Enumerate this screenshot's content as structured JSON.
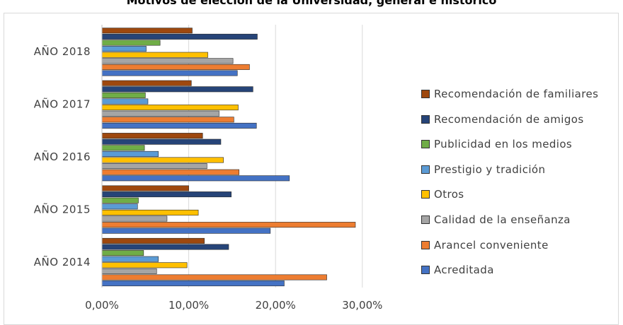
{
  "chart_data": {
    "type": "bar",
    "orientation": "horizontal",
    "title": "Motivos de elección de la Universidad, general e histórico",
    "categories": [
      "AÑO 2014",
      "AÑO 2015",
      "AÑO 2016",
      "AÑO 2017",
      "AÑO 2018"
    ],
    "x_tick_labels": [
      "0,00%",
      "10,00%",
      "20,00%",
      "30,00%"
    ],
    "xlim": [
      0,
      30
    ],
    "grid": true,
    "legend_position": "right",
    "series": [
      {
        "name": "Acreditada",
        "color": "#4472C4",
        "values": [
          21.0,
          19.4,
          21.6,
          17.8,
          15.6
        ]
      },
      {
        "name": "Arancel conveniente",
        "color": "#ED7D31",
        "values": [
          25.9,
          29.2,
          15.8,
          15.2,
          17.0
        ]
      },
      {
        "name": "Calidad de la enseñanza",
        "color": "#A5A5A5",
        "values": [
          6.3,
          7.5,
          12.1,
          13.5,
          15.1
        ]
      },
      {
        "name": "Otros",
        "color": "#FFC000",
        "values": [
          9.8,
          11.1,
          14.0,
          15.7,
          12.2
        ]
      },
      {
        "name": "Prestigio y tradición",
        "color": "#5B9BD5",
        "values": [
          6.5,
          4.1,
          6.5,
          5.3,
          5.1
        ]
      },
      {
        "name": "Publicidad en los medios",
        "color": "#70AD47",
        "values": [
          4.8,
          4.2,
          4.9,
          5.0,
          6.7
        ]
      },
      {
        "name": "Recomendación de amigos",
        "color": "#264478",
        "values": [
          14.6,
          14.9,
          13.7,
          17.4,
          17.9
        ]
      },
      {
        "name": "Recomendación de familiares",
        "color": "#9E480E",
        "values": [
          11.8,
          10.0,
          11.6,
          10.3,
          10.4
        ]
      }
    ]
  }
}
